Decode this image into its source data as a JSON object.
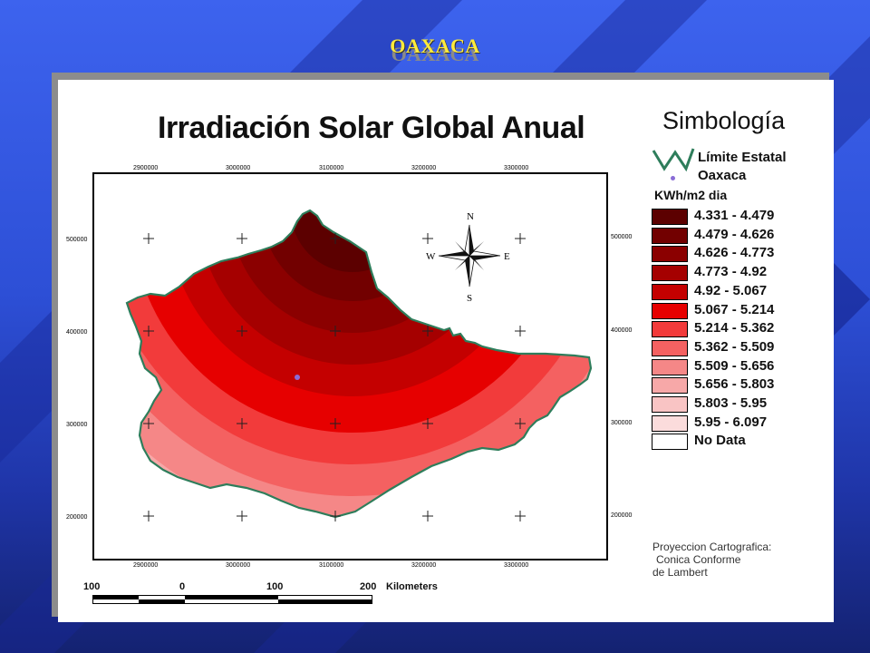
{
  "slide": {
    "title": "OAXACA"
  },
  "map": {
    "title": "Irradiación Solar Global Anual",
    "x_ticks": [
      "2900000",
      "3000000",
      "3100000",
      "3200000",
      "3300000"
    ],
    "y_ticks": [
      "500000",
      "400000",
      "300000",
      "200000"
    ],
    "compass": {
      "n": "N",
      "s": "S",
      "e": "E",
      "w": "W"
    }
  },
  "legend": {
    "title": "Simbología",
    "boundary_label": "Límite Estatal",
    "point_label": "Oaxaca",
    "unit": "KWh/m2 dia",
    "classes": [
      {
        "label": "4.331 - 4.479",
        "color": "#5c0000"
      },
      {
        "label": "4.479 - 4.626",
        "color": "#720000"
      },
      {
        "label": "4.626 - 4.773",
        "color": "#8b0000"
      },
      {
        "label": "4.773 - 4.92",
        "color": "#a50000"
      },
      {
        "label": "4.92 - 5.067",
        "color": "#c40000"
      },
      {
        "label": "5.067 - 5.214",
        "color": "#e60000"
      },
      {
        "label": "5.214 - 5.362",
        "color": "#f23b3b"
      },
      {
        "label": "5.362 - 5.509",
        "color": "#f46161"
      },
      {
        "label": "5.509 - 5.656",
        "color": "#f58787"
      },
      {
        "label": "5.656 - 5.803",
        "color": "#f7a8a8"
      },
      {
        "label": "5.803 - 5.95",
        "color": "#f9c4c4"
      },
      {
        "label": "5.95 - 6.097",
        "color": "#fbdcdc"
      },
      {
        "label": "No Data",
        "color": "#ffffff"
      }
    ]
  },
  "projection": {
    "line1": "Proyeccion Cartografica:",
    "line2": "Conica Conforme",
    "line3": "de Lambert"
  },
  "scale": {
    "labels": [
      "100",
      "0",
      "100",
      "200"
    ],
    "unit": "Kilometers"
  }
}
